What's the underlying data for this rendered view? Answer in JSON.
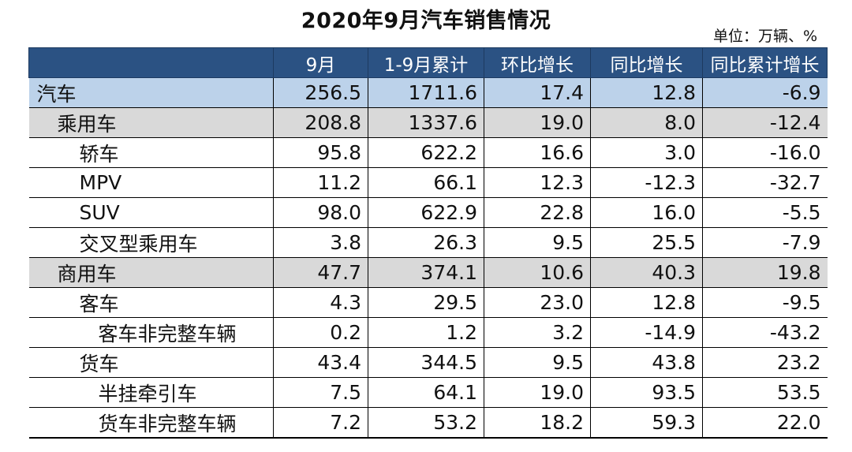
{
  "title": "2020年9月汽车销售情况",
  "unit": "单位：万辆、%",
  "columns": [
    "",
    "9月",
    "1-9月累计",
    "环比增长",
    "同比增长",
    "同比累计增长"
  ],
  "rows": [
    {
      "name": "汽车",
      "level": 0,
      "values": [
        "256.5",
        "1711.6",
        "17.4",
        "12.8",
        "-6.9"
      ]
    },
    {
      "name": "乘用车",
      "level": 1,
      "values": [
        "208.8",
        "1337.6",
        "19.0",
        "8.0",
        "-12.4"
      ]
    },
    {
      "name": "轿车",
      "level": 2,
      "values": [
        "95.8",
        "622.2",
        "16.6",
        "3.0",
        "-16.0"
      ]
    },
    {
      "name": "MPV",
      "level": 2,
      "values": [
        "11.2",
        "66.1",
        "12.3",
        "-12.3",
        "-32.7"
      ]
    },
    {
      "name": "SUV",
      "level": 2,
      "values": [
        "98.0",
        "622.9",
        "22.8",
        "16.0",
        "-5.5"
      ]
    },
    {
      "name": "交叉型乘用车",
      "level": 2,
      "values": [
        "3.8",
        "26.3",
        "9.5",
        "25.5",
        "-7.9"
      ]
    },
    {
      "name": "商用车",
      "level": 1,
      "values": [
        "47.7",
        "374.1",
        "10.6",
        "40.3",
        "19.8"
      ]
    },
    {
      "name": "客车",
      "level": 2,
      "values": [
        "4.3",
        "29.5",
        "23.0",
        "12.8",
        "-9.5"
      ]
    },
    {
      "name": "客车非完整车辆",
      "level": 3,
      "values": [
        "0.2",
        "1.2",
        "3.2",
        "-14.9",
        "-43.2"
      ]
    },
    {
      "name": "货车",
      "level": 2,
      "values": [
        "43.4",
        "344.5",
        "9.5",
        "43.8",
        "23.2"
      ]
    },
    {
      "name": "半挂牵引车",
      "level": 3,
      "values": [
        "7.5",
        "64.1",
        "19.0",
        "93.5",
        "53.5"
      ]
    },
    {
      "name": "货车非完整车辆",
      "level": 3,
      "values": [
        "7.2",
        "53.2",
        "18.2",
        "59.3",
        "22.0"
      ]
    }
  ]
}
